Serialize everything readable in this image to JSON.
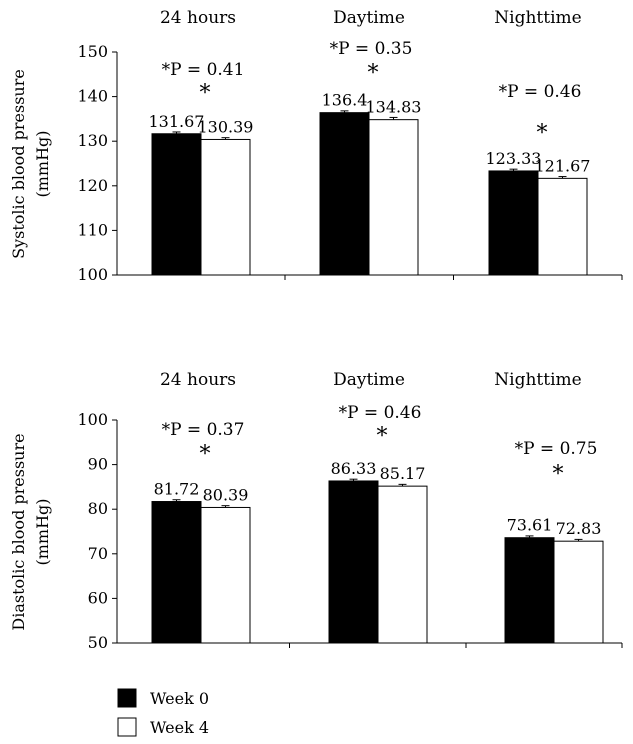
{
  "chart_data": [
    {
      "type": "bar",
      "groups": [
        "24 hours",
        "Daytime",
        "Nighttime"
      ],
      "series": [
        {
          "name": "Week 0",
          "values": [
            131.67,
            136.4,
            123.33
          ],
          "errors": [
            0.4,
            0.4,
            0.4
          ]
        },
        {
          "name": "Week 4",
          "values": [
            130.39,
            134.83,
            121.67
          ],
          "errors": [
            0.4,
            0.5,
            0.4
          ]
        }
      ],
      "value_labels": [
        [
          "131.67",
          "130.39"
        ],
        [
          "136.4",
          "134.83"
        ],
        [
          "123.33",
          "121.67"
        ]
      ],
      "annotations": [
        "*P = 0.41",
        "*P = 0.35",
        "*P = 0.46"
      ],
      "ylabel": [
        "Systolic blood pressure",
        "(mmHg)"
      ],
      "yticks": [
        "100",
        "110",
        "120",
        "130",
        "140",
        "150"
      ],
      "ylim": [
        100,
        150
      ]
    },
    {
      "type": "bar",
      "groups": [
        "24 hours",
        "Daytime",
        "Nighttime"
      ],
      "series": [
        {
          "name": "Week 0",
          "values": [
            81.72,
            86.33,
            73.61
          ],
          "errors": [
            0.4,
            0.4,
            0.4
          ]
        },
        {
          "name": "Week 4",
          "values": [
            80.39,
            85.17,
            72.83
          ],
          "errors": [
            0.4,
            0.4,
            0.4
          ]
        }
      ],
      "value_labels": [
        [
          "81.72",
          "80.39"
        ],
        [
          "86.33",
          "85.17"
        ],
        [
          "73.61",
          "72.83"
        ]
      ],
      "annotations": [
        "*P = 0.37",
        "*P = 0.46",
        "*P = 0.75"
      ],
      "ylabel": [
        "Diastolic blood pressure",
        "(mmHg)"
      ],
      "yticks": [
        "50",
        "60",
        "70",
        "80",
        "90",
        "100"
      ],
      "ylim": [
        50,
        100
      ]
    }
  ],
  "legend": [
    {
      "label": "Week 0",
      "color": "#000000"
    },
    {
      "label": "Week 4",
      "color": "#ffffff"
    }
  ]
}
